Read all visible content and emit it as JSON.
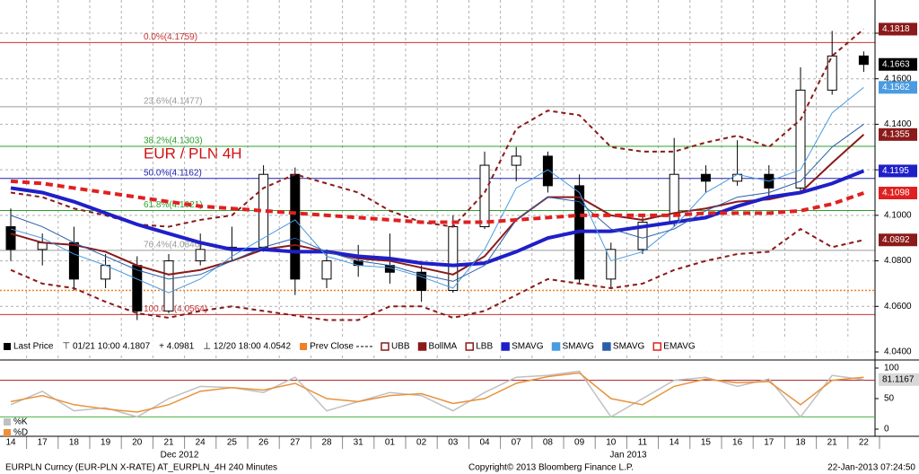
{
  "chart_data": [
    {
      "type": "candlestick",
      "title": "EUR / PLN 4H",
      "categories": [
        "14",
        "17",
        "18",
        "19",
        "20",
        "21",
        "24",
        "25",
        "26",
        "27",
        "28",
        "31",
        "01",
        "02",
        "03",
        "04",
        "07",
        "08",
        "09",
        "10",
        "11",
        "14",
        "15",
        "16",
        "17",
        "18",
        "21",
        "22"
      ],
      "x_groups": [
        "Dec 2012",
        "Jan 2013"
      ],
      "ylim": [
        4.03685,
        4.19459
      ],
      "yticks": [
        {
          "value": 4.04,
          "label": "4.0400"
        },
        {
          "value": 4.06,
          "label": "4.0600"
        },
        {
          "value": 4.08,
          "label": "4.0800"
        },
        {
          "value": 4.1,
          "label": "4.1000"
        },
        {
          "value": 4.12,
          "label": "4.1200"
        },
        {
          "value": 4.14,
          "label": "4.1400"
        },
        {
          "value": 4.16,
          "label": "4.1600"
        },
        {
          "value": 4.18,
          "label": "4.1800"
        }
      ],
      "grid": true,
      "price": {
        "name": "Last Price",
        "color": "#000000",
        "open": [
          4.095,
          4.085,
          4.088,
          4.072,
          4.078,
          4.058,
          4.08,
          4.085,
          4.086,
          4.118,
          4.072,
          4.08,
          4.078,
          4.075,
          4.067,
          4.095,
          4.122,
          4.126,
          4.113,
          4.072,
          4.085,
          4.097,
          4.118,
          4.115,
          4.118,
          4.112,
          4.155,
          4.17
        ],
        "high": [
          4.103,
          4.092,
          4.095,
          4.083,
          4.082,
          4.083,
          4.092,
          4.095,
          4.122,
          4.121,
          4.085,
          4.087,
          4.092,
          4.078,
          4.1,
          4.128,
          4.13,
          4.128,
          4.118,
          4.088,
          4.1,
          4.134,
          4.122,
          4.133,
          4.122,
          4.165,
          4.181,
          4.172
        ],
        "low": [
          4.08,
          4.078,
          4.067,
          4.068,
          4.054,
          4.057,
          4.078,
          4.08,
          4.084,
          4.065,
          4.068,
          4.073,
          4.07,
          4.062,
          4.066,
          4.094,
          4.115,
          4.11,
          4.07,
          4.068,
          4.083,
          4.095,
          4.11,
          4.113,
          4.108,
          4.11,
          4.153,
          4.163
        ],
        "close": [
          4.085,
          4.088,
          4.072,
          4.078,
          4.058,
          4.08,
          4.085,
          4.086,
          4.118,
          4.072,
          4.08,
          4.078,
          4.075,
          4.067,
          4.095,
          4.122,
          4.126,
          4.113,
          4.072,
          4.085,
          4.097,
          4.118,
          4.115,
          4.118,
          4.112,
          4.155,
          4.17,
          4.1663
        ]
      },
      "series": [
        {
          "name": "UBB",
          "color": "#8b1a1a",
          "dash": true,
          "weight": "normal",
          "values": [
            4.11,
            4.108,
            4.103,
            4.1,
            4.096,
            4.095,
            4.098,
            4.1,
            4.112,
            4.118,
            4.114,
            4.11,
            4.102,
            4.097,
            4.095,
            4.11,
            4.138,
            4.146,
            4.144,
            4.13,
            4.128,
            4.128,
            4.132,
            4.135,
            4.13,
            4.142,
            4.17,
            4.1818
          ]
        },
        {
          "name": "BollMA",
          "color": "#8b1a1a",
          "dash": false,
          "weight": "normal",
          "values": [
            4.092,
            4.088,
            4.087,
            4.084,
            4.078,
            4.074,
            4.076,
            4.08,
            4.085,
            4.087,
            4.084,
            4.081,
            4.08,
            4.077,
            4.074,
            4.082,
            4.098,
            4.108,
            4.108,
            4.1,
            4.098,
            4.101,
            4.103,
            4.106,
            4.107,
            4.11,
            4.123,
            4.1355
          ]
        },
        {
          "name": "LBB",
          "color": "#8b1a1a",
          "dash": true,
          "weight": "normal",
          "values": [
            4.076,
            4.07,
            4.068,
            4.062,
            4.057,
            4.055,
            4.058,
            4.06,
            4.058,
            4.056,
            4.054,
            4.054,
            4.06,
            4.06,
            4.055,
            4.058,
            4.065,
            4.072,
            4.07,
            4.068,
            4.07,
            4.076,
            4.08,
            4.083,
            4.084,
            4.094,
            4.086,
            4.0892
          ]
        },
        {
          "name": "SMAVG",
          "color": "#1f1fc8",
          "dash": false,
          "weight": "heavy",
          "values": [
            4.112,
            4.11,
            4.106,
            4.101,
            4.096,
            4.092,
            4.088,
            4.085,
            4.085,
            4.084,
            4.084,
            4.082,
            4.081,
            4.079,
            4.078,
            4.079,
            4.084,
            4.09,
            4.093,
            4.093,
            4.095,
            4.097,
            4.099,
            4.104,
            4.108,
            4.11,
            4.114,
            4.1195
          ]
        },
        {
          "name": "SMAVG",
          "color": "#4a9be0",
          "dash": false,
          "weight": "light",
          "values": [
            4.094,
            4.09,
            4.083,
            4.078,
            4.072,
            4.066,
            4.072,
            4.082,
            4.09,
            4.098,
            4.082,
            4.078,
            4.077,
            4.073,
            4.068,
            4.085,
            4.112,
            4.12,
            4.11,
            4.08,
            4.084,
            4.095,
            4.11,
            4.118,
            4.115,
            4.12,
            4.145,
            4.1562
          ]
        },
        {
          "name": "SMAVG",
          "color": "#2a5fa8",
          "dash": false,
          "weight": "light",
          "values": [
            4.1,
            4.095,
            4.088,
            4.082,
            4.076,
            4.072,
            4.074,
            4.08,
            4.086,
            4.09,
            4.084,
            4.08,
            4.078,
            4.074,
            4.071,
            4.078,
            4.098,
            4.108,
            4.106,
            4.094,
            4.09,
            4.094,
            4.102,
            4.108,
            4.11,
            4.115,
            4.13,
            4.14
          ]
        },
        {
          "name": "EMAVG",
          "color": "#e02020",
          "dash": true,
          "weight": "heavy",
          "values": [
            4.115,
            4.114,
            4.112,
            4.11,
            4.108,
            4.106,
            4.104,
            4.103,
            4.102,
            4.101,
            4.1,
            4.099,
            4.098,
            4.097,
            4.097,
            4.097,
            4.098,
            4.099,
            4.1,
            4.1,
            4.1,
            4.1,
            4.101,
            4.101,
            4.101,
            4.102,
            4.105,
            4.1098
          ]
        }
      ],
      "fib_levels": [
        {
          "label": "0.0%(4.1759)",
          "value": 4.1759,
          "color": "#c83232"
        },
        {
          "label": "23.6%(4.1477)",
          "value": 4.1477,
          "color": "#9a9a9a"
        },
        {
          "label": "38.2%(4.1303)",
          "value": 4.1303,
          "color": "#2ca02c"
        },
        {
          "label": "50.0%(4.1162)",
          "value": 4.1162,
          "color": "#2020b0"
        },
        {
          "label": "61.8%(4.1021)",
          "value": 4.1021,
          "color": "#2ca02c"
        },
        {
          "label": "76.4%(4.0846)",
          "value": 4.0846,
          "color": "#9a9a9a"
        },
        {
          "label": "100.0%(4.0564)",
          "value": 4.0564,
          "color": "#c83232"
        }
      ],
      "prev_close": {
        "label": "Prev Close",
        "value": 4.067,
        "color": "#f08020"
      },
      "legend_notes": [
        "⊤ 01/21 10:00 4.1807",
        "+ 4.0981",
        "⊥ 12/20 18:00 4.0542"
      ]
    },
    {
      "type": "line",
      "ylim": [
        -10.29,
        107.35
      ],
      "yticks": [
        0,
        50,
        100
      ],
      "ref_lines": [
        {
          "value": 80,
          "color": "#a02020"
        },
        {
          "value": 20,
          "color": "#40b040"
        }
      ],
      "series": [
        {
          "name": "%K",
          "color": "#c0c0c0",
          "values": [
            40,
            62,
            30,
            35,
            20,
            50,
            70,
            68,
            60,
            85,
            30,
            45,
            60,
            55,
            30,
            60,
            85,
            88,
            95,
            20,
            50,
            80,
            85,
            70,
            82,
            20,
            88,
            81.1167
          ]
        },
        {
          "name": "%D",
          "color": "#e8923c",
          "values": [
            45,
            55,
            40,
            33,
            28,
            40,
            62,
            68,
            64,
            75,
            50,
            45,
            55,
            58,
            42,
            50,
            75,
            86,
            92,
            50,
            40,
            70,
            82,
            76,
            78,
            40,
            80,
            85
          ]
        }
      ]
    }
  ],
  "footer": {
    "left": "EURPLN Curncy (EUR-PLN X-RATE) AT_EURPLN_4H  240 Minutes",
    "center": "Copyright© 2013 Bloomberg Finance L.P.",
    "right": "22-Jan-2013 07:24:50"
  }
}
